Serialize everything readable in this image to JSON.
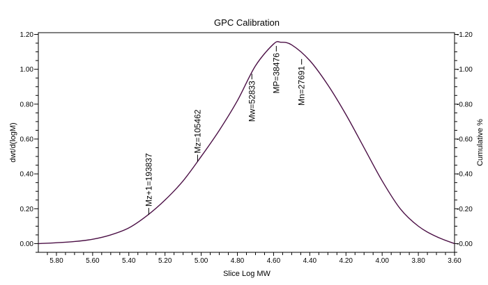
{
  "chart_data": {
    "type": "line",
    "title": "GPC Calibration",
    "xlabel": "Slice Log MW",
    "ylabel": "dwt/d(logM)",
    "y2label": "Cumulative %",
    "xlim": [
      5.9,
      3.6
    ],
    "x_reversed": true,
    "ylim": [
      -0.05,
      1.21
    ],
    "grid": false,
    "x_ticks": [
      "5.80",
      "5.60",
      "5.40",
      "5.20",
      "5.00",
      "4.80",
      "4.60",
      "4.40",
      "4.20",
      "4.00",
      "3.80",
      "3.60"
    ],
    "y_ticks": [
      "0.00",
      "0.20",
      "0.40",
      "0.60",
      "0.80",
      "1.00",
      "1.20"
    ],
    "y2_ticks": [
      "-0.00",
      "-0.20",
      "-0.40",
      "-0.60",
      "-0.80",
      "-1.00",
      "-1.20"
    ],
    "line_color": "#4b0f45",
    "series": [
      {
        "name": "dwt/d(logM)",
        "x": [
          5.9,
          5.8,
          5.7,
          5.6,
          5.5,
          5.4,
          5.3,
          5.2,
          5.1,
          5.0,
          4.9,
          4.8,
          4.7,
          4.6,
          4.56,
          4.5,
          4.4,
          4.3,
          4.2,
          4.1,
          4.0,
          3.9,
          3.8,
          3.7,
          3.6
        ],
        "y": [
          0.0,
          0.005,
          0.012,
          0.025,
          0.05,
          0.09,
          0.16,
          0.25,
          0.36,
          0.5,
          0.65,
          0.82,
          1.02,
          1.145,
          1.155,
          1.14,
          1.05,
          0.91,
          0.74,
          0.55,
          0.36,
          0.2,
          0.1,
          0.04,
          0.0
        ]
      }
    ],
    "annotations": [
      {
        "label": "Mz+1=193837",
        "x": 5.29,
        "y": 0.165,
        "side": "above"
      },
      {
        "label": "Mz=105462",
        "x": 5.02,
        "y": 0.47,
        "side": "above"
      },
      {
        "label": "Mw=52833",
        "x": 4.72,
        "y": 0.99,
        "side": "below"
      },
      {
        "label": "MP=38476",
        "x": 4.585,
        "y": 1.15,
        "side": "below"
      },
      {
        "label": "Mn=27691",
        "x": 4.445,
        "y": 1.075,
        "side": "below"
      }
    ]
  }
}
